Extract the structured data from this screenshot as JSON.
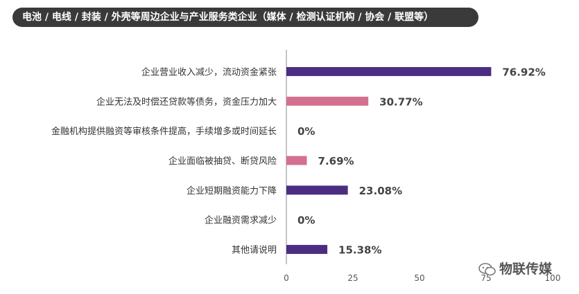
{
  "title": "电池 / 电线 / 封装 / 外壳等周边企业与产业服务类企业（媒体 / 检测认证机构 / 协会 / 联盟等）",
  "watermark": "物联传媒",
  "chart_data": {
    "type": "bar",
    "orientation": "horizontal",
    "categories": [
      "企业营业收入减少，流动资金紧张",
      "企业无法及时偿还贷款等债务，资金压力加大",
      "金融机构提供融资等审核条件提高，手续增多或时间延长",
      "企业面临被抽贷、断贷风险",
      "企业短期融资能力下降",
      "企业融资需求减少",
      "其他请说明"
    ],
    "values": [
      76.92,
      30.77,
      0,
      7.69,
      23.08,
      0,
      15.38
    ],
    "value_labels": [
      "76.92%",
      "30.77%",
      "0%",
      "7.69%",
      "23.08%",
      "0%",
      "15.38%"
    ],
    "bar_colors": [
      "#4b2d82",
      "#d4708f",
      "#4b2d82",
      "#d4708f",
      "#4b2d82",
      "#4b2d82",
      "#4b2d82"
    ],
    "xlim": [
      0,
      100
    ],
    "xticks": [
      0,
      25,
      50,
      75,
      100
    ],
    "xtick_labels": [
      "0",
      "25",
      "50",
      "75",
      "100"
    ],
    "grid": false
  }
}
